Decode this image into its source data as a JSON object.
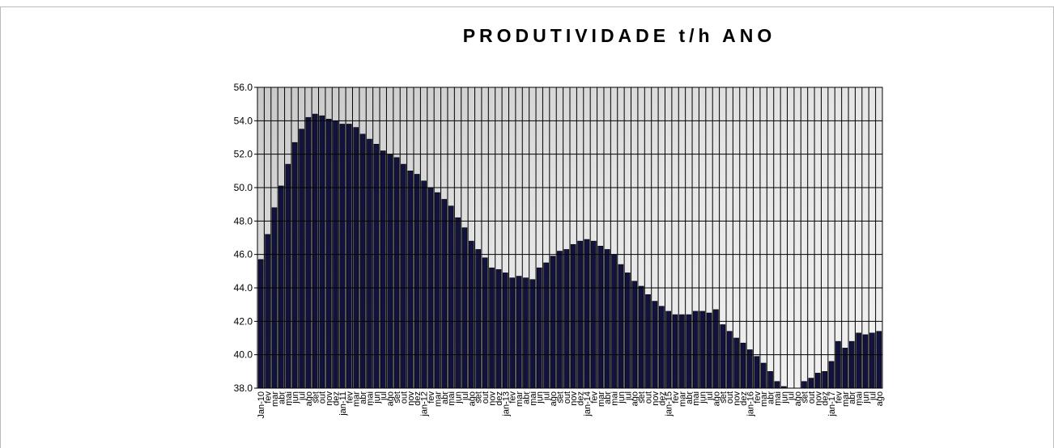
{
  "chart_data": {
    "type": "bar",
    "title": "PRODUTIVIDADE t/h ANO",
    "categories": [
      "Jan-10",
      "fev",
      "mar",
      "abr",
      "mai",
      "jun",
      "jul",
      "ago",
      "set",
      "out",
      "nov",
      "dez",
      "jan-11",
      "fev",
      "mar",
      "abr",
      "mai",
      "jun",
      "jul",
      "ago",
      "set",
      "out",
      "nov",
      "dez",
      "jan-12",
      "fev",
      "mar",
      "abr",
      "mai",
      "jun",
      "jul",
      "ago",
      "set",
      "out",
      "nov",
      "dez",
      "jan-13",
      "fev",
      "mar",
      "abr",
      "mai",
      "jun",
      "jul",
      "ago",
      "set",
      "out",
      "nov",
      "dez",
      "jan-14",
      "fev",
      "mar",
      "abr",
      "mai",
      "jun",
      "jul",
      "ago",
      "set",
      "out",
      "nov",
      "dez",
      "jan-15",
      "fev",
      "mar",
      "abr",
      "mai",
      "jun",
      "jul",
      "ago",
      "set",
      "out",
      "nov",
      "dez",
      "jan-16",
      "fev",
      "mar",
      "abr",
      "mai",
      "jun",
      "jul",
      "ago",
      "set",
      "out",
      "nov",
      "dez",
      "jan-17",
      "fev",
      "mar",
      "abr",
      "mai",
      "jun",
      "jul",
      "ago"
    ],
    "values": [
      45.7,
      47.2,
      48.8,
      50.1,
      51.4,
      52.7,
      53.5,
      54.2,
      54.4,
      54.3,
      54.1,
      54.0,
      53.8,
      53.8,
      53.6,
      53.2,
      52.9,
      52.6,
      52.2,
      52.0,
      51.8,
      51.4,
      51.0,
      50.8,
      50.4,
      50.0,
      49.7,
      49.3,
      48.9,
      48.2,
      47.6,
      46.8,
      46.3,
      45.8,
      45.2,
      45.1,
      44.9,
      44.6,
      44.7,
      44.6,
      44.5,
      45.2,
      45.5,
      45.9,
      46.2,
      46.3,
      46.6,
      46.8,
      46.9,
      46.8,
      46.5,
      46.3,
      46.0,
      45.4,
      44.9,
      44.4,
      44.1,
      43.6,
      43.2,
      42.9,
      42.6,
      42.4,
      42.4,
      42.4,
      42.6,
      42.6,
      42.5,
      42.7,
      41.8,
      41.4,
      41.0,
      40.7,
      40.3,
      39.9,
      39.5,
      39.0,
      38.4,
      38.1,
      37.9,
      38.0,
      38.4,
      38.6,
      38.9,
      39.0,
      39.6,
      40.8,
      40.4,
      40.8,
      41.3,
      41.2,
      41.3,
      41.4
    ],
    "color": "#12123f",
    "ylim": [
      38,
      56
    ],
    "yticks": [
      {
        "value": 38,
        "label": "38.0"
      },
      {
        "value": 40,
        "label": "40.0"
      },
      {
        "value": 42,
        "label": "42.0"
      },
      {
        "value": 44,
        "label": "44.0"
      },
      {
        "value": 46,
        "label": "46.0"
      },
      {
        "value": 48,
        "label": "48.0"
      },
      {
        "value": 50,
        "label": "50.0"
      },
      {
        "value": 52,
        "label": "52.0"
      },
      {
        "value": 54,
        "label": "54.0"
      },
      {
        "value": 56,
        "label": "56.0"
      }
    ],
    "grid": true
  }
}
